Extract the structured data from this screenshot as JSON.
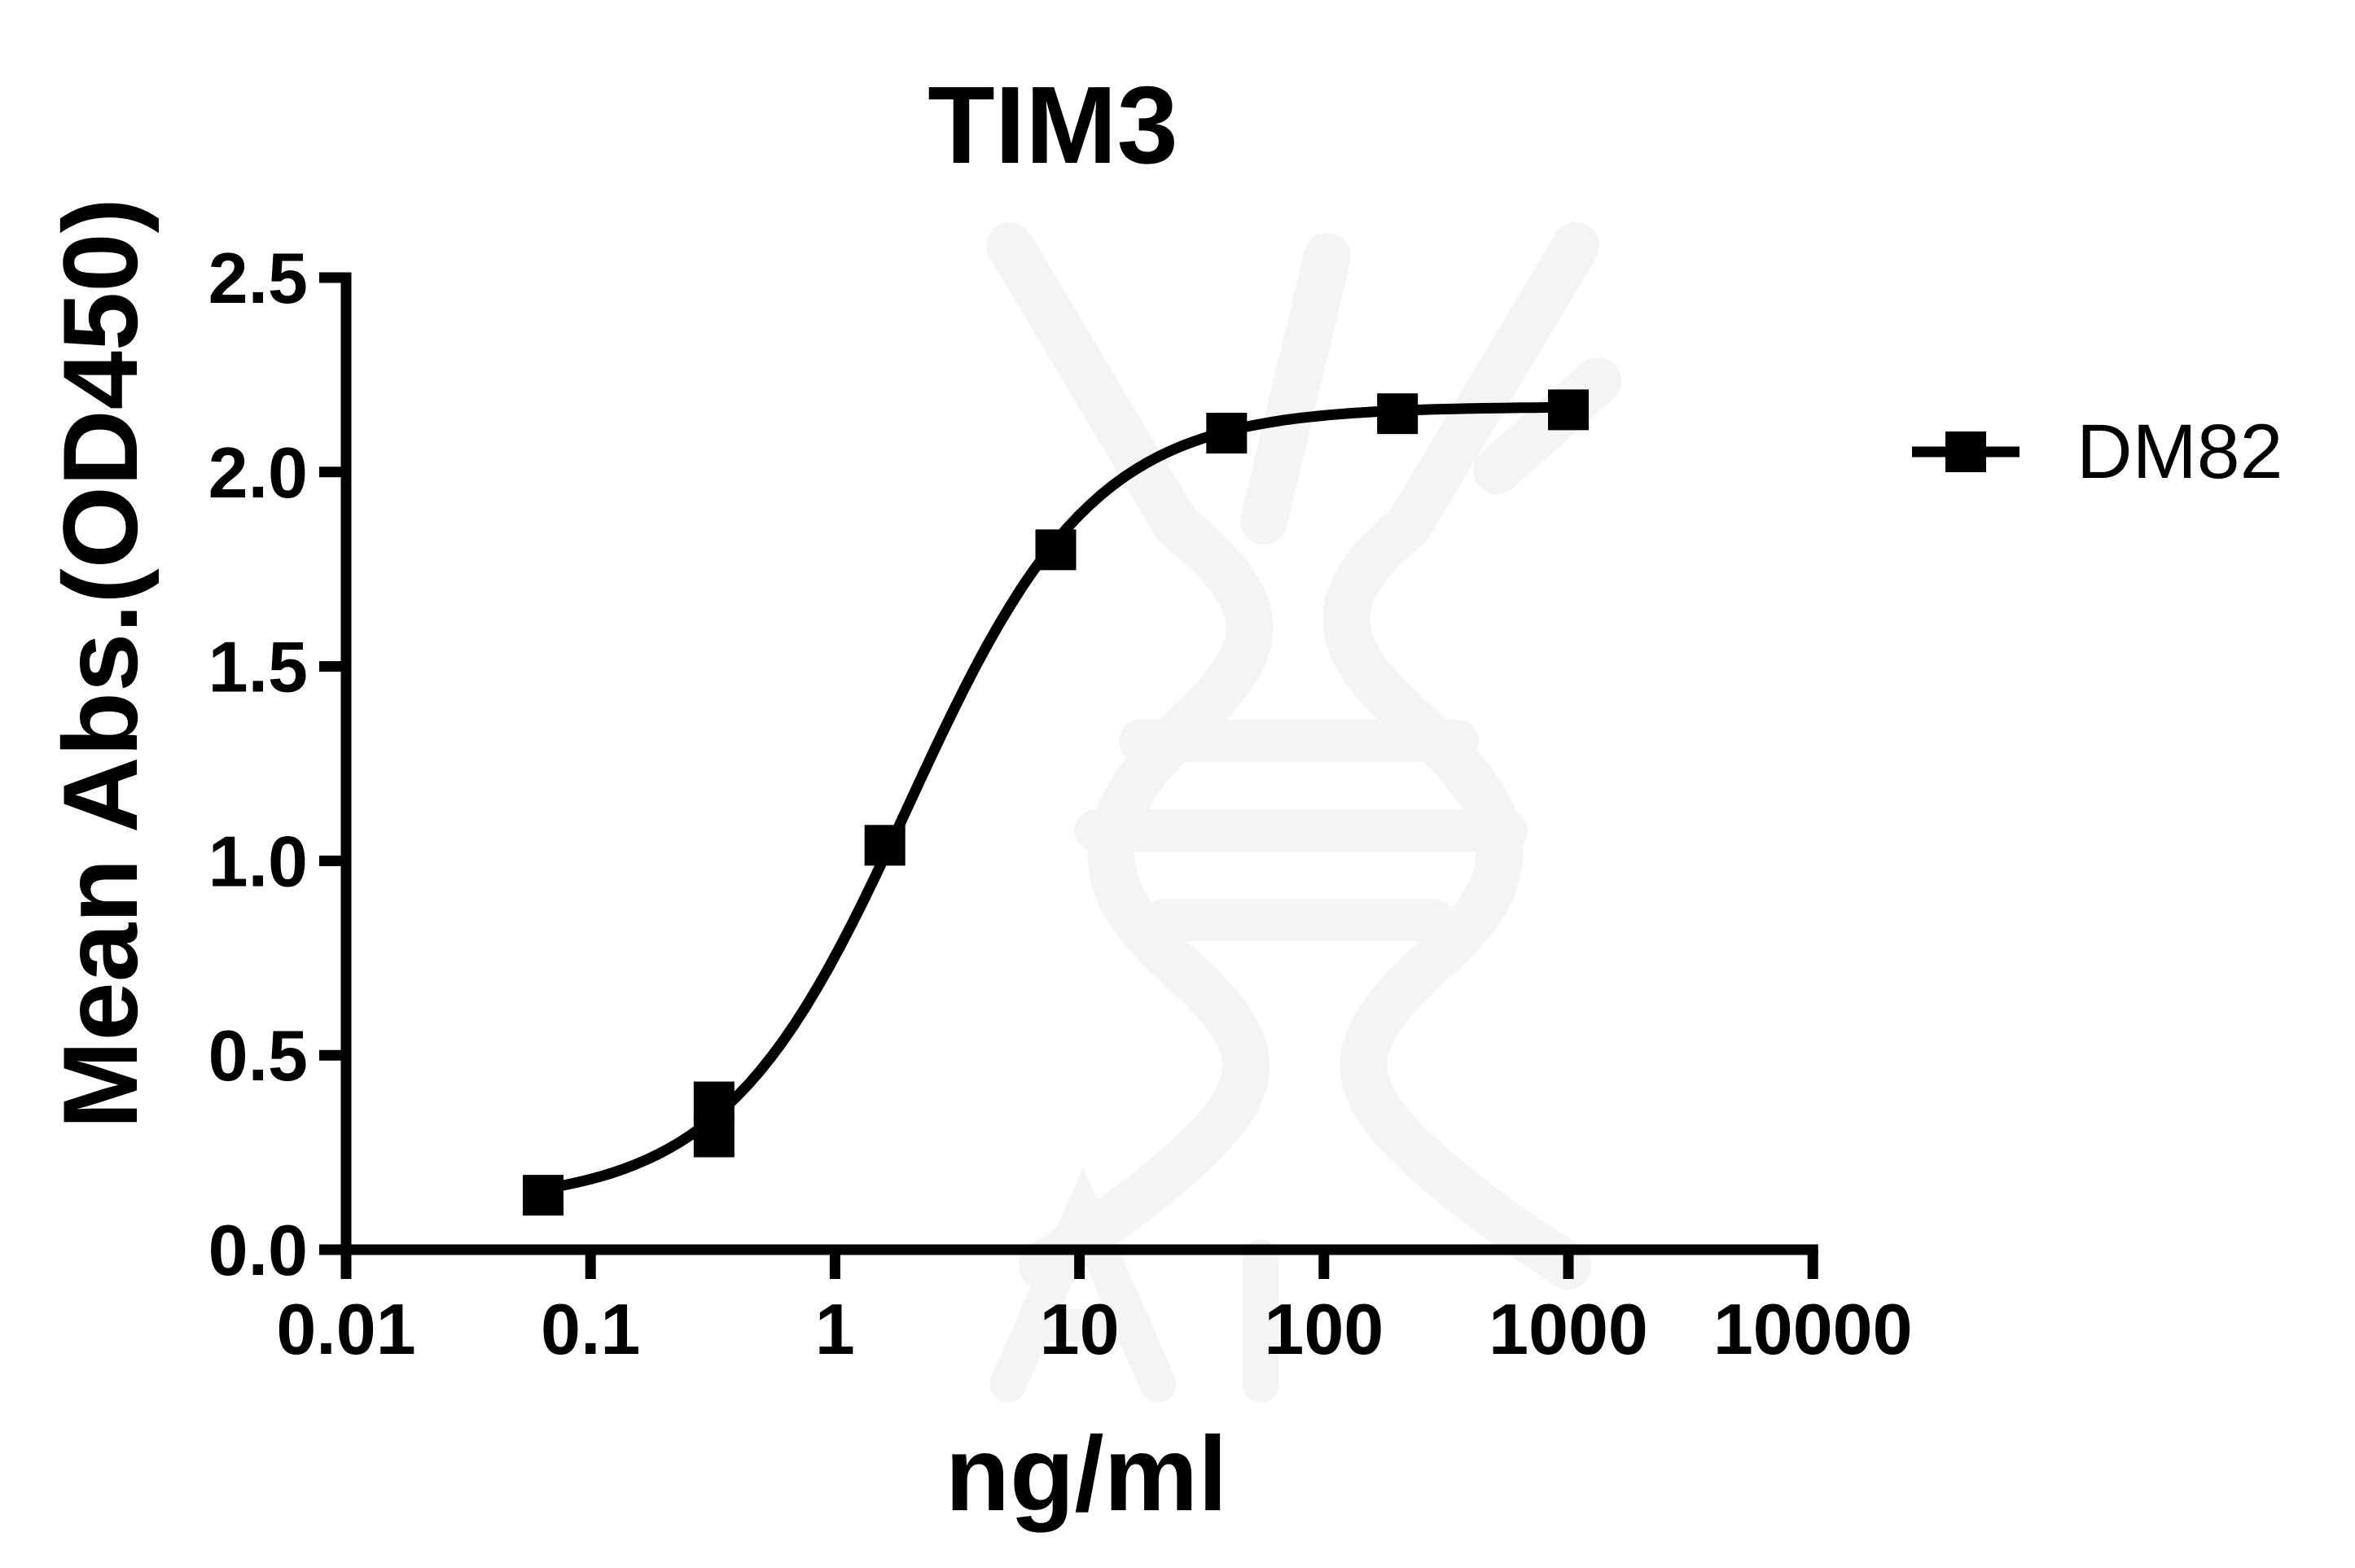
{
  "chart_data": {
    "type": "scatter",
    "subtype": "log-dose-response-curve",
    "title": "TIM3",
    "xlabel": "ng/ml",
    "ylabel": "Mean Abs.(OD450)",
    "x_scale": "log10",
    "xlim": [
      0.01,
      10000
    ],
    "ylim": [
      0.0,
      2.5
    ],
    "grid": false,
    "x_tick_labels": [
      "0.01",
      "0.1",
      "1",
      "10",
      "100",
      "1000",
      "10000"
    ],
    "y_tick_labels": [
      "0.0",
      "0.5",
      "1.0",
      "1.5",
      "2.0",
      "2.5"
    ],
    "legend": {
      "position": "right-middle"
    },
    "series": [
      {
        "name": "DM82",
        "color": "#000000",
        "marker": "filled-square",
        "line": "4PL-fit-curve",
        "points": [
          {
            "x": 0.064,
            "y": 0.14
          },
          {
            "x": 0.32,
            "y": 0.38
          },
          {
            "x": 0.32,
            "y": 0.29
          },
          {
            "x": 1.6,
            "y": 1.04
          },
          {
            "x": 8,
            "y": 1.8
          },
          {
            "x": 40,
            "y": 2.1
          },
          {
            "x": 200,
            "y": 2.15
          },
          {
            "x": 1000,
            "y": 2.16
          }
        ],
        "fit": {
          "type": "4PL",
          "bottom": 0.118,
          "top": 2.168,
          "ec50": 2.0,
          "hill": 1.15,
          "x_start": 0.064,
          "x_end": 1000
        }
      }
    ],
    "watermark": "dna-helix-logo",
    "colors": {
      "foreground": "#000000",
      "background": "#ffffff",
      "watermark": "#f4f4f4"
    }
  }
}
